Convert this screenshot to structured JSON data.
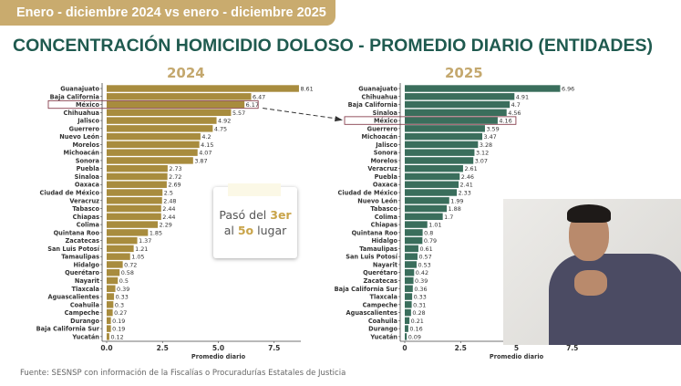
{
  "header": {
    "period": "Enero - diciembre  2024 vs enero - diciembre 2025",
    "title": "CONCENTRACIÓN HOMICIDIO DOLOSO - PROMEDIO DIARIO (ENTIDADES)"
  },
  "callout": {
    "pre": "Pasó del ",
    "a": "3er",
    "mid": " al ",
    "b": "5o",
    "post": " lugar"
  },
  "source": "Fuente: SESNSP con información de la Fiscalías o Procuradurías Estatales de Justicia",
  "colors": {
    "bar2024": "#a88c3e",
    "bar2025": "#3a6e5c",
    "title": "#1f5a4f",
    "highlight": "#7a2a3a"
  },
  "chart_data": [
    {
      "type": "bar",
      "orientation": "horizontal",
      "title": "2024",
      "xlabel": "Promedio diario",
      "xlim": [
        0,
        9
      ],
      "xticks": [
        "0.0",
        "2.5",
        "5.0",
        "7.5"
      ],
      "highlight": "México",
      "categories": [
        "Guanajuato",
        "Baja California",
        "México",
        "Chihuahua",
        "Jalisco",
        "Guerrero",
        "Nuevo León",
        "Morelos",
        "Michoacán",
        "Sonora",
        "Puebla",
        "Sinaloa",
        "Oaxaca",
        "Ciudad de México",
        "Veracruz",
        "Tabasco",
        "Chiapas",
        "Colima",
        "Quintana Roo",
        "Zacatecas",
        "San Luis Potosí",
        "Tamaulipas",
        "Hidalgo",
        "Querétaro",
        "Nayarit",
        "Tlaxcala",
        "Aguascalientes",
        "Coahuila",
        "Campeche",
        "Durango",
        "Baja California Sur",
        "Yucatán"
      ],
      "values": [
        8.61,
        6.47,
        6.17,
        5.57,
        4.92,
        4.75,
        4.2,
        4.15,
        4.07,
        3.87,
        2.73,
        2.72,
        2.69,
        2.5,
        2.48,
        2.44,
        2.44,
        2.29,
        1.85,
        1.37,
        1.21,
        1.05,
        0.72,
        0.58,
        0.5,
        0.39,
        0.33,
        0.3,
        0.27,
        0.19,
        0.19,
        0.12
      ]
    },
    {
      "type": "bar",
      "orientation": "horizontal",
      "title": "2025",
      "xlabel": "Promedio diario",
      "xlim": [
        0,
        9
      ],
      "xticks": [
        "0",
        "2.5",
        "5",
        "7.5"
      ],
      "highlight": "México",
      "categories": [
        "Guanajuato",
        "Chihuahua",
        "Baja California",
        "Sinaloa",
        "México",
        "Guerrero",
        "Michoacán",
        "Jalisco",
        "Sonora",
        "Morelos",
        "Veracruz",
        "Puebla",
        "Oaxaca",
        "Ciudad de México",
        "Nuevo León",
        "Tabasco",
        "Colima",
        "Chiapas",
        "Quintana Roo",
        "Hidalgo",
        "Tamaulipas",
        "San Luis Potosí",
        "Nayarit",
        "Querétaro",
        "Zacatecas",
        "Baja California Sur",
        "Tlaxcala",
        "Campeche",
        "Aguascalientes",
        "Coahuila",
        "Durango",
        "Yucatán"
      ],
      "values": [
        6.96,
        4.91,
        4.7,
        4.56,
        4.16,
        3.59,
        3.47,
        3.28,
        3.12,
        3.07,
        2.61,
        2.46,
        2.41,
        2.33,
        1.99,
        1.88,
        1.7,
        1.01,
        0.8,
        0.79,
        0.61,
        0.57,
        0.53,
        0.42,
        0.39,
        0.36,
        0.33,
        0.31,
        0.28,
        0.21,
        0.16,
        0.09
      ]
    }
  ]
}
